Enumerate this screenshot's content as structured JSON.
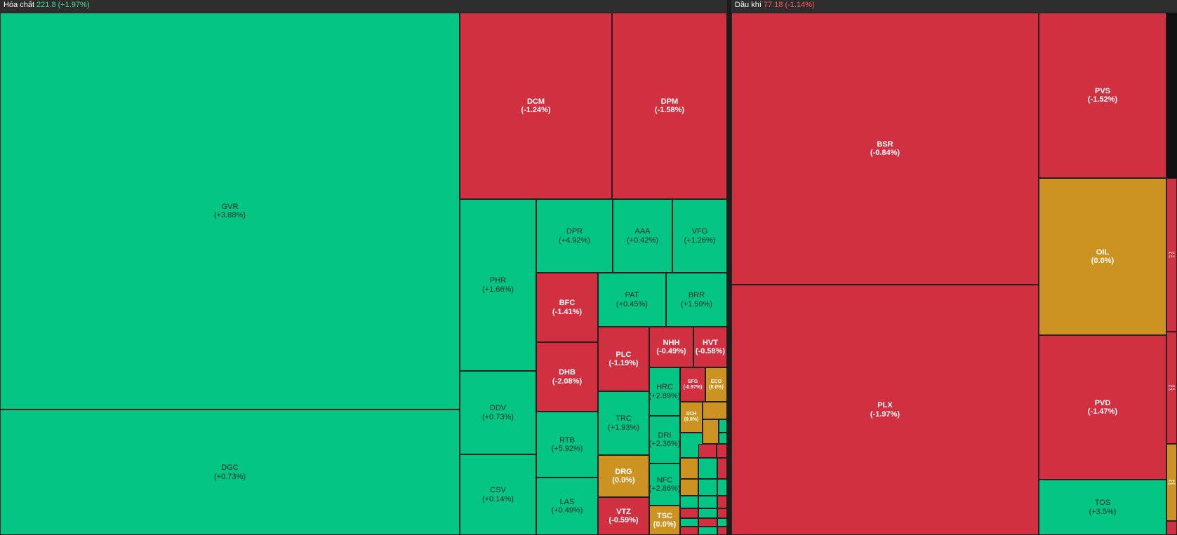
{
  "colors": {
    "up": "#05c585",
    "down": "#d03040",
    "flat": "#cc9322",
    "header_up": "#3ddc97",
    "header_down": "#ff5a5a"
  },
  "sectors": [
    {
      "name": "Hóa chất",
      "value": "221.8",
      "change": "(+1.97%)",
      "trend": "up",
      "tiles": [
        {
          "symbol": "GVR",
          "change": "(+3.88%)",
          "trend": "up"
        },
        {
          "symbol": "DGC",
          "change": "(+0.73%)",
          "trend": "up"
        },
        {
          "symbol": "DCM",
          "change": "(-1.24%)",
          "trend": "down"
        },
        {
          "symbol": "DPM",
          "change": "(-1.58%)",
          "trend": "down"
        },
        {
          "symbol": "PHR",
          "change": "(+1.66%)",
          "trend": "up"
        },
        {
          "symbol": "DDV",
          "change": "(+0.73%)",
          "trend": "up"
        },
        {
          "symbol": "CSV",
          "change": "(+0.14%)",
          "trend": "up"
        },
        {
          "symbol": "DPR",
          "change": "(+4.92%)",
          "trend": "up"
        },
        {
          "symbol": "AAA",
          "change": "(+0.42%)",
          "trend": "up"
        },
        {
          "symbol": "VFG",
          "change": "(+1.26%)",
          "trend": "up"
        },
        {
          "symbol": "BFC",
          "change": "(-1.41%)",
          "trend": "down"
        },
        {
          "symbol": "DHB",
          "change": "(-2.08%)",
          "trend": "down"
        },
        {
          "symbol": "RTB",
          "change": "(+5.92%)",
          "trend": "up"
        },
        {
          "symbol": "LAS",
          "change": "(+0.49%)",
          "trend": "up"
        },
        {
          "symbol": "PAT",
          "change": "(+0.45%)",
          "trend": "up"
        },
        {
          "symbol": "BRR",
          "change": "(+1.59%)",
          "trend": "up"
        },
        {
          "symbol": "PLC",
          "change": "(-1.19%)",
          "trend": "down"
        },
        {
          "symbol": "NHH",
          "change": "(-0.49%)",
          "trend": "down"
        },
        {
          "symbol": "HVT",
          "change": "(-0.58%)",
          "trend": "down"
        },
        {
          "symbol": "TRC",
          "change": "(+1.93%)",
          "trend": "up"
        },
        {
          "symbol": "DRG",
          "change": "(0.0%)",
          "trend": "flat"
        },
        {
          "symbol": "VTZ",
          "change": "(-0.59%)",
          "trend": "down"
        },
        {
          "symbol": "HRC",
          "change": "(+2.89%)",
          "trend": "up"
        },
        {
          "symbol": "DRI",
          "change": "(+2.36%)",
          "trend": "up"
        },
        {
          "symbol": "NFC",
          "change": "(+2.86%)",
          "trend": "up"
        },
        {
          "symbol": "TSC",
          "change": "(0.0%)",
          "trend": "flat"
        },
        {
          "symbol": "SFG",
          "change": "(-0.97%)",
          "trend": "down"
        },
        {
          "symbol": "ECO",
          "change": "(0.0%)",
          "trend": "flat"
        },
        {
          "symbol": "SCH",
          "change": "(0.0%)",
          "trend": "flat"
        },
        {
          "symbol": "",
          "change": "",
          "trend": "flat"
        },
        {
          "symbol": "",
          "change": "",
          "trend": "up"
        },
        {
          "symbol": "",
          "change": "",
          "trend": "flat"
        },
        {
          "symbol": "",
          "change": "",
          "trend": "up"
        },
        {
          "symbol": "",
          "change": "",
          "trend": "up"
        },
        {
          "symbol": "",
          "change": "",
          "trend": "flat"
        },
        {
          "symbol": "",
          "change": "",
          "trend": "down"
        },
        {
          "symbol": "",
          "change": "",
          "trend": "down"
        },
        {
          "symbol": "",
          "change": "",
          "trend": "up"
        },
        {
          "symbol": "",
          "change": "",
          "trend": "down"
        },
        {
          "symbol": "",
          "change": "",
          "trend": "flat"
        },
        {
          "symbol": "",
          "change": "",
          "trend": "up"
        },
        {
          "symbol": "",
          "change": "",
          "trend": "up"
        },
        {
          "symbol": "",
          "change": "",
          "trend": "up"
        },
        {
          "symbol": "",
          "change": "",
          "trend": "up"
        },
        {
          "symbol": "",
          "change": "",
          "trend": "down"
        },
        {
          "symbol": "",
          "change": "",
          "trend": "down"
        },
        {
          "symbol": "",
          "change": "",
          "trend": "up"
        },
        {
          "symbol": "",
          "change": "",
          "trend": "down"
        },
        {
          "symbol": "",
          "change": "",
          "trend": "up"
        },
        {
          "symbol": "",
          "change": "",
          "trend": "down"
        },
        {
          "symbol": "",
          "change": "",
          "trend": "up"
        },
        {
          "symbol": "",
          "change": "",
          "trend": "down"
        },
        {
          "symbol": "",
          "change": "",
          "trend": "up"
        },
        {
          "symbol": "",
          "change": "",
          "trend": "down"
        }
      ]
    },
    {
      "name": "Dầu khí",
      "value": "77.18",
      "change": "(-1.14%)",
      "trend": "down",
      "tiles": [
        {
          "symbol": "BSR",
          "change": "(-0.84%)",
          "trend": "down"
        },
        {
          "symbol": "PLX",
          "change": "(-1.97%)",
          "trend": "down"
        },
        {
          "symbol": "PVS",
          "change": "(-1.52%)",
          "trend": "down"
        },
        {
          "symbol": "OIL",
          "change": "(0.0%)",
          "trend": "flat"
        },
        {
          "symbol": "PVD",
          "change": "(-1.47%)",
          "trend": "down"
        },
        {
          "symbol": "TOS",
          "change": "(+3.5%)",
          "trend": "up"
        },
        {
          "symbol": "PVC",
          "change": "(-3.3",
          "trend": "down"
        },
        {
          "symbol": "PCG",
          "change": "(-3.3",
          "trend": "down"
        },
        {
          "symbol": "PVB",
          "change": "(0.0%",
          "trend": "flat"
        },
        {
          "symbol": "",
          "change": "",
          "trend": "down"
        }
      ]
    }
  ],
  "chart_data": {
    "type": "treemap",
    "series": [
      {
        "name": "Hóa chất",
        "index": 221.8,
        "index_change_pct": 1.97,
        "points": [
          {
            "symbol": "GVR",
            "change_pct": 3.88
          },
          {
            "symbol": "DGC",
            "change_pct": 0.73
          },
          {
            "symbol": "DCM",
            "change_pct": -1.24
          },
          {
            "symbol": "DPM",
            "change_pct": -1.58
          },
          {
            "symbol": "PHR",
            "change_pct": 1.66
          },
          {
            "symbol": "DDV",
            "change_pct": 0.73
          },
          {
            "symbol": "CSV",
            "change_pct": 0.14
          },
          {
            "symbol": "DPR",
            "change_pct": 4.92
          },
          {
            "symbol": "AAA",
            "change_pct": 0.42
          },
          {
            "symbol": "VFG",
            "change_pct": 1.26
          },
          {
            "symbol": "BFC",
            "change_pct": -1.41
          },
          {
            "symbol": "DHB",
            "change_pct": -2.08
          },
          {
            "symbol": "RTB",
            "change_pct": 5.92
          },
          {
            "symbol": "LAS",
            "change_pct": 0.49
          },
          {
            "symbol": "PAT",
            "change_pct": 0.45
          },
          {
            "symbol": "BRR",
            "change_pct": 1.59
          },
          {
            "symbol": "PLC",
            "change_pct": -1.19
          },
          {
            "symbol": "NHH",
            "change_pct": -0.49
          },
          {
            "symbol": "HVT",
            "change_pct": -0.58
          },
          {
            "symbol": "TRC",
            "change_pct": 1.93
          },
          {
            "symbol": "DRG",
            "change_pct": 0.0
          },
          {
            "symbol": "VTZ",
            "change_pct": -0.59
          },
          {
            "symbol": "HRC",
            "change_pct": 2.89
          },
          {
            "symbol": "DRI",
            "change_pct": 2.36
          },
          {
            "symbol": "NFC",
            "change_pct": 2.86
          },
          {
            "symbol": "TSC",
            "change_pct": 0.0
          },
          {
            "symbol": "SFG",
            "change_pct": -0.97
          },
          {
            "symbol": "ECO",
            "change_pct": 0.0
          },
          {
            "symbol": "SCH",
            "change_pct": 0.0
          }
        ]
      },
      {
        "name": "Dầu khí",
        "index": 77.18,
        "index_change_pct": -1.14,
        "points": [
          {
            "symbol": "BSR",
            "change_pct": -0.84
          },
          {
            "symbol": "PLX",
            "change_pct": -1.97
          },
          {
            "symbol": "PVS",
            "change_pct": -1.52
          },
          {
            "symbol": "OIL",
            "change_pct": 0.0
          },
          {
            "symbol": "PVD",
            "change_pct": -1.47
          },
          {
            "symbol": "TOS",
            "change_pct": 3.5
          }
        ]
      }
    ]
  }
}
